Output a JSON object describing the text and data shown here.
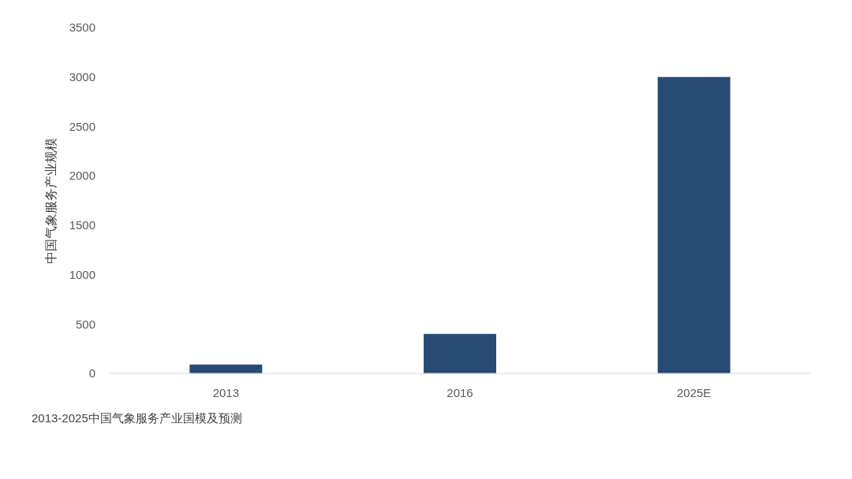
{
  "chart_data": {
    "type": "bar",
    "categories": [
      "2013",
      "2016",
      "2025E"
    ],
    "values": [
      90,
      400,
      3000
    ],
    "color": "#284b73",
    "ylim": [
      0,
      3500
    ],
    "yticks": [
      0,
      500,
      1000,
      1500,
      2000,
      2500,
      3000,
      3500
    ],
    "ylabel": "中国气象服务产业规模",
    "annotations": [
      "2013-2025中国气象服务产业国模及预测"
    ]
  }
}
